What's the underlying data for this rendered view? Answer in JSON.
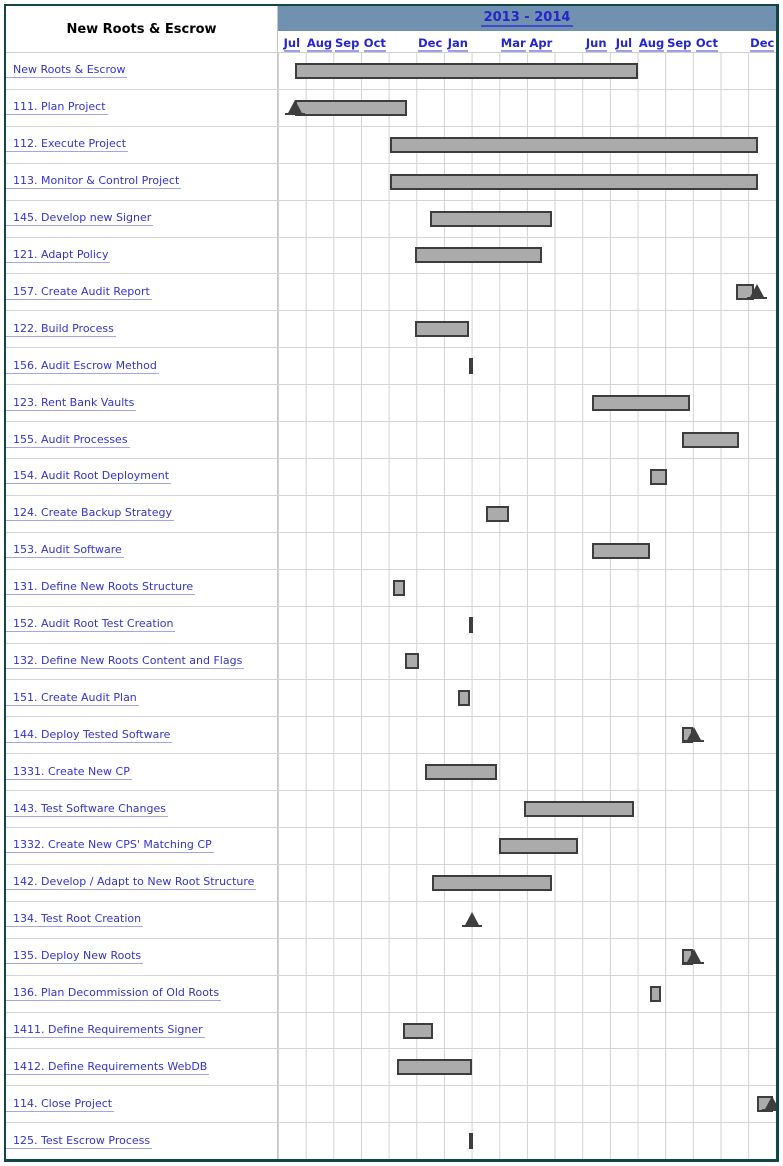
{
  "header": {
    "project_name": "New Roots & Escrow",
    "year_range": "2013 - 2014"
  },
  "timeline": {
    "start": "Jul 2013",
    "end": "Dec 2014",
    "total_months": 18,
    "months": [
      "Jul",
      "Aug",
      "Sep",
      "Oct",
      "",
      "Dec",
      "Jan",
      "",
      "Mar",
      "Apr",
      "",
      "Jun",
      "Jul",
      "Aug",
      "Sep",
      "Oct",
      "",
      "Dec"
    ]
  },
  "chart_data": {
    "type": "gantt",
    "title": "New Roots & Escrow",
    "unit": "month offset from start of Jul 2013 (0 = Jul 1 2013, 18 = end of Dec 2014)",
    "legend": {
      "bar": "task duration",
      "triangle": "milestone"
    },
    "tasks": [
      {
        "label": "New Roots & Escrow",
        "bar": [
          0.6,
          13.0
        ],
        "milestone": null,
        "milestone_pos": null
      },
      {
        "label": "111. Plan Project",
        "bar": [
          0.63,
          4.65
        ],
        "milestone": 0.6,
        "milestone_pos": "start"
      },
      {
        "label": "112. Execute Project",
        "bar": [
          4.05,
          17.35
        ],
        "milestone": null,
        "milestone_pos": null
      },
      {
        "label": "113. Monitor & Control Project",
        "bar": [
          4.05,
          17.35
        ],
        "milestone": null,
        "milestone_pos": null
      },
      {
        "label": "145. Develop new Signer",
        "bar": [
          5.5,
          9.9
        ],
        "milestone": null,
        "milestone_pos": null
      },
      {
        "label": "121. Adapt Policy",
        "bar": [
          4.95,
          9.55
        ],
        "milestone": null,
        "milestone_pos": null
      },
      {
        "label": "157. Create Audit Report",
        "bar": [
          16.55,
          17.2
        ],
        "milestone": 17.3,
        "milestone_pos": "end"
      },
      {
        "label": "122. Build Process",
        "bar": [
          4.95,
          6.9
        ],
        "milestone": null,
        "milestone_pos": null
      },
      {
        "label": "156. Audit Escrow Method",
        "bar": [
          6.92,
          7.06
        ],
        "milestone": null,
        "milestone_pos": null
      },
      {
        "label": "123. Rent Bank Vaults",
        "bar": [
          11.35,
          14.9
        ],
        "milestone": null,
        "milestone_pos": null
      },
      {
        "label": "155. Audit Processes",
        "bar": [
          14.6,
          16.65
        ],
        "milestone": null,
        "milestone_pos": null
      },
      {
        "label": "154. Audit Root Deployment",
        "bar": [
          13.45,
          14.05
        ],
        "milestone": null,
        "milestone_pos": null
      },
      {
        "label": "124. Create Backup Strategy",
        "bar": [
          7.5,
          8.35
        ],
        "milestone": null,
        "milestone_pos": null
      },
      {
        "label": "153. Audit Software",
        "bar": [
          11.35,
          13.45
        ],
        "milestone": null,
        "milestone_pos": null
      },
      {
        "label": "131. Define New Roots Structure",
        "bar": [
          4.15,
          4.6
        ],
        "milestone": null,
        "milestone_pos": null
      },
      {
        "label": "152. Audit Root Test Creation",
        "bar": [
          6.92,
          7.06
        ],
        "milestone": null,
        "milestone_pos": null
      },
      {
        "label": "132. Define New Roots Content and Flags",
        "bar": [
          4.6,
          5.1
        ],
        "milestone": null,
        "milestone_pos": null
      },
      {
        "label": "151. Create Audit Plan",
        "bar": [
          6.5,
          6.95
        ],
        "milestone": null,
        "milestone_pos": null
      },
      {
        "label": "144. Deploy Tested Software",
        "bar": [
          14.6,
          15.0
        ],
        "milestone": 15.05,
        "milestone_pos": "end"
      },
      {
        "label": "1331. Create New CP",
        "bar": [
          5.3,
          7.9
        ],
        "milestone": null,
        "milestone_pos": null
      },
      {
        "label": "143. Test Software Changes",
        "bar": [
          8.9,
          12.85
        ],
        "milestone": null,
        "milestone_pos": null
      },
      {
        "label": "1332. Create New CPS' Matching CP",
        "bar": [
          8.0,
          10.85
        ],
        "milestone": null,
        "milestone_pos": null
      },
      {
        "label": "142. Develop / Adapt to New Root Structure",
        "bar": [
          5.55,
          9.9
        ],
        "milestone": null,
        "milestone_pos": null
      },
      {
        "label": "134. Test Root Creation",
        "bar": null,
        "milestone": 7.0,
        "milestone_pos": "solo"
      },
      {
        "label": "135. Deploy New Roots",
        "bar": [
          14.6,
          15.0
        ],
        "milestone": 15.05,
        "milestone_pos": "end"
      },
      {
        "label": "136. Plan Decommission of Old Roots",
        "bar": [
          13.45,
          13.85
        ],
        "milestone": null,
        "milestone_pos": null
      },
      {
        "label": "1411. Define Requirements Signer",
        "bar": [
          4.5,
          5.6
        ],
        "milestone": null,
        "milestone_pos": null
      },
      {
        "label": "1412. Define Requirements WebDB",
        "bar": [
          4.3,
          7.0
        ],
        "milestone": null,
        "milestone_pos": null
      },
      {
        "label": "114. Close Project",
        "bar": [
          17.3,
          17.9
        ],
        "milestone": 17.85,
        "milestone_pos": "end"
      },
      {
        "label": "125. Test Escrow Process",
        "bar": [
          6.92,
          7.06
        ],
        "milestone": null,
        "milestone_pos": null
      }
    ]
  },
  "colors": {
    "frame": "#124647",
    "year_band": "#7191B1",
    "link": "#2525CC",
    "link_task": "#3333CC",
    "bar_fill": "#ABABAB",
    "bar_border": "#3D3D3D",
    "milestone": "#3E3E3E",
    "grid": "#D2D2D2"
  }
}
